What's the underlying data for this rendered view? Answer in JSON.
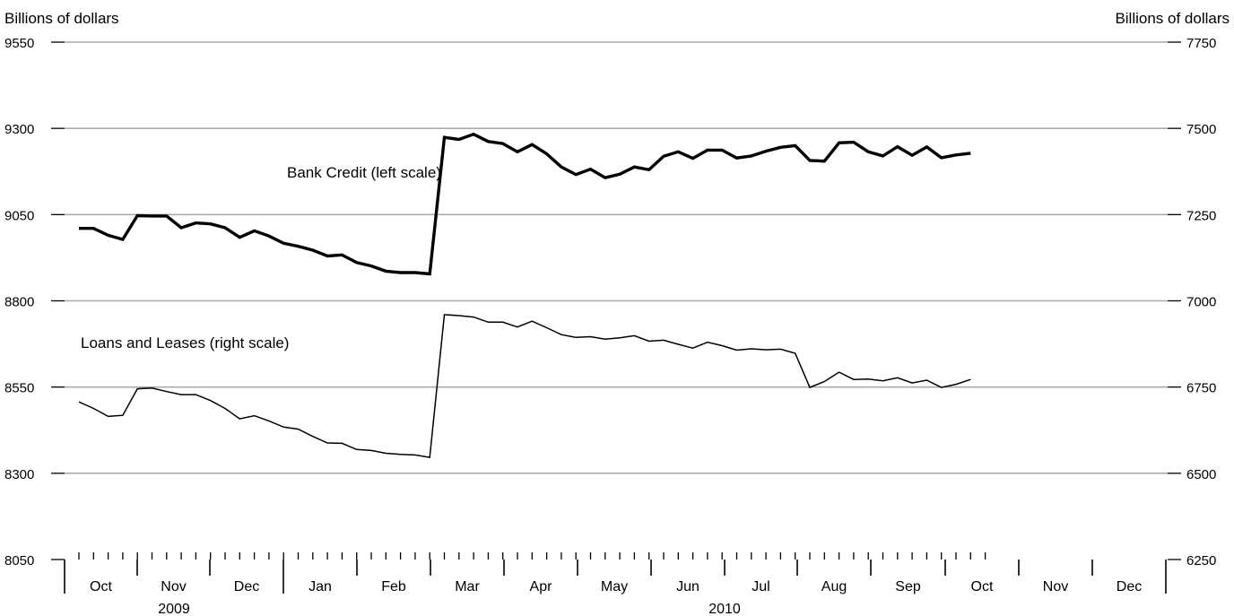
{
  "chart_data": {
    "type": "line",
    "left_axis": {
      "label": "Billions of dollars",
      "ylim": [
        8050,
        9550
      ],
      "ticks": [
        "8050",
        "8300",
        "8550",
        "8800",
        "9050",
        "9300",
        "9550"
      ]
    },
    "right_axis": {
      "label": "Billions of dollars",
      "ylim": [
        6250,
        7750
      ],
      "ticks": [
        "6250",
        "6500",
        "6750",
        "7000",
        "7250",
        "7500",
        "7750"
      ]
    },
    "months": [
      "Oct",
      "Nov",
      "Dec",
      "Jan",
      "Feb",
      "Mar",
      "Apr",
      "May",
      "Jun",
      "Jul",
      "Aug",
      "Sep",
      "Oct",
      "Nov",
      "Dec"
    ],
    "years": [
      "2009",
      "2010"
    ],
    "grid": true,
    "series": [
      {
        "name": "Bank Credit (left scale)",
        "axis": "left",
        "line_weight": "heavy",
        "values": [
          9010,
          9010,
          8990,
          8978,
          9047,
          9046,
          9046,
          9012,
          9026,
          9023,
          9012,
          8984,
          9003,
          8988,
          8967,
          8958,
          8947,
          8930,
          8933,
          8911,
          8901,
          8886,
          8882,
          8882,
          8878,
          9274,
          9268,
          9283,
          9262,
          9256,
          9232,
          9253,
          9226,
          9188,
          9166,
          9182,
          9157,
          9167,
          9188,
          9180,
          9219,
          9232,
          9213,
          9237,
          9237,
          9214,
          9220,
          9234,
          9245,
          9250,
          9207,
          9205,
          9258,
          9260,
          9232,
          9220,
          9247,
          9222,
          9246,
          9215,
          9223,
          9228
        ]
      },
      {
        "name": "Loans and Leases (right scale)",
        "axis": "right",
        "line_weight": "light",
        "values": [
          6707,
          6688,
          6665,
          6668,
          6745,
          6747,
          6737,
          6728,
          6728,
          6711,
          6688,
          6658,
          6667,
          6652,
          6634,
          6628,
          6607,
          6588,
          6587,
          6569,
          6566,
          6558,
          6555,
          6553,
          6546,
          6960,
          6957,
          6953,
          6938,
          6938,
          6924,
          6941,
          6922,
          6902,
          6894,
          6896,
          6889,
          6893,
          6899,
          6883,
          6886,
          6874,
          6863,
          6880,
          6870,
          6857,
          6861,
          6858,
          6860,
          6848,
          6749,
          6766,
          6793,
          6772,
          6773,
          6768,
          6777,
          6762,
          6770,
          6749,
          6758,
          6772
        ]
      }
    ]
  }
}
